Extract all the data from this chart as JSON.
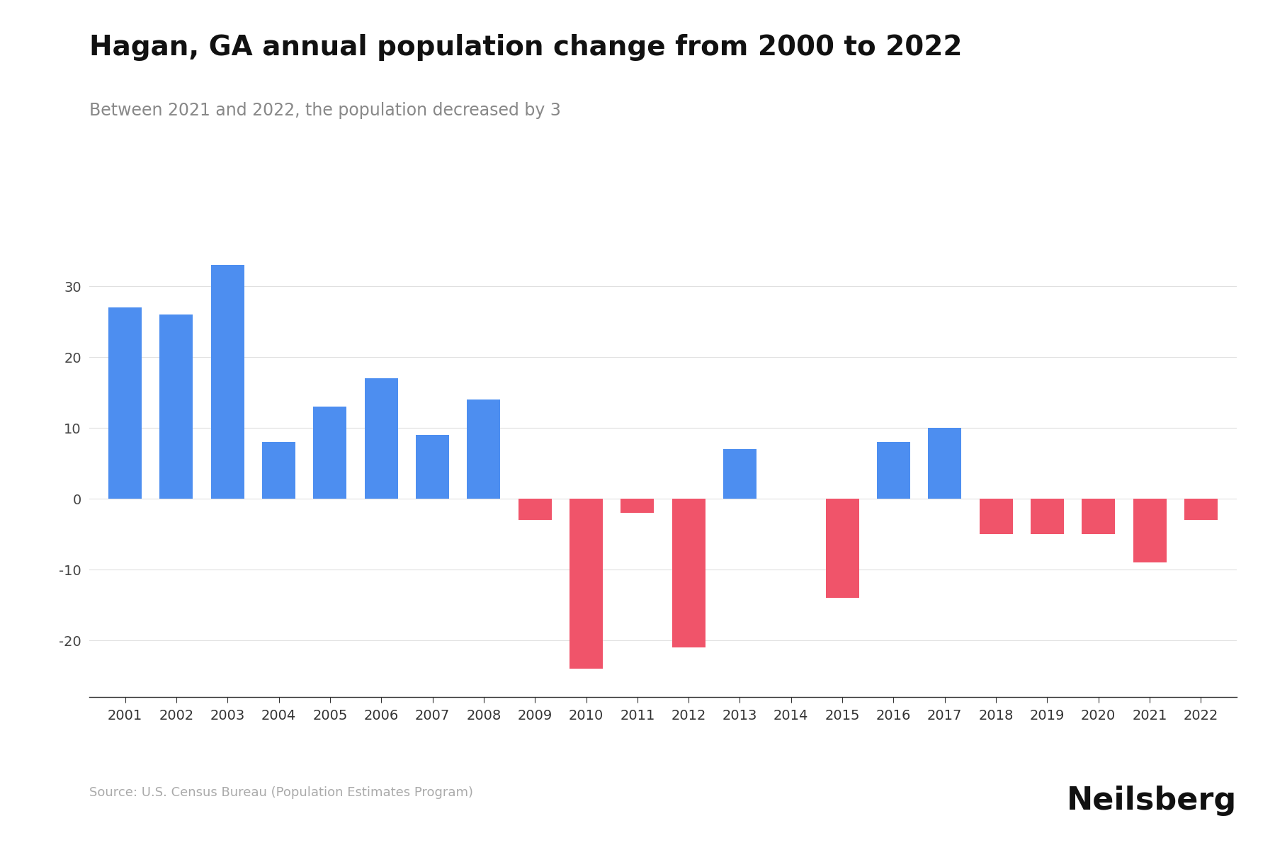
{
  "title": "Hagan, GA annual population change from 2000 to 2022",
  "subtitle": "Between 2021 and 2022, the population decreased by 3",
  "source": "Source: U.S. Census Bureau (Population Estimates Program)",
  "branding": "Neilsberg",
  "years": [
    2001,
    2002,
    2003,
    2004,
    2005,
    2006,
    2007,
    2008,
    2009,
    2010,
    2011,
    2012,
    2013,
    2014,
    2015,
    2016,
    2017,
    2018,
    2019,
    2020,
    2021,
    2022
  ],
  "values": [
    27,
    26,
    33,
    8,
    13,
    17,
    9,
    14,
    -3,
    -24,
    -2,
    -21,
    7,
    0,
    -14,
    8,
    10,
    -5,
    -5,
    -5,
    -9,
    -3
  ],
  "color_positive": "#4d8ef0",
  "color_negative": "#f0546a",
  "background_color": "#ffffff",
  "title_fontsize": 28,
  "subtitle_fontsize": 17,
  "tick_fontsize": 14,
  "source_fontsize": 13,
  "branding_fontsize": 32,
  "ylim": [
    -28,
    38
  ],
  "yticks": [
    -20,
    -10,
    0,
    10,
    20,
    30
  ]
}
